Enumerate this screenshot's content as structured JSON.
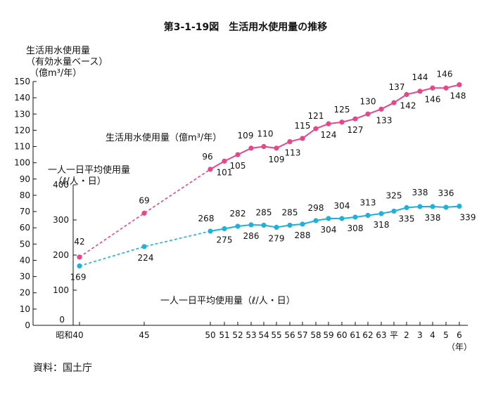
{
  "title": "第3-1-19図　生活用水使用量の推移",
  "source": "資料：国土庁",
  "left_axis_label": [
    "生活用水使用量",
    "（有効水量ベース）",
    "（億m³/年）"
  ],
  "right_axis_label": [
    "一人一日平均使用量",
    "（ℓ/人・日）"
  ],
  "x_unit": "（年）",
  "chart_data": {
    "type": "line",
    "title": "第3-1-19図　生活用水使用量の推移",
    "x_ticks": [
      "昭和40",
      "45",
      "50",
      "51",
      "52",
      "53",
      "54",
      "55",
      "56",
      "57",
      "58",
      "59",
      "60",
      "61",
      "62",
      "63",
      "平",
      "2",
      "3",
      "4",
      "5",
      "6"
    ],
    "series": [
      {
        "name": "生活用水使用量（億m³/年）",
        "axis": "left",
        "color": "#e6468a",
        "x": [
          "昭和40",
          "45",
          "50",
          "51",
          "52",
          "53",
          "54",
          "55",
          "56",
          "57",
          "58",
          "59",
          "60",
          "61",
          "62",
          "63",
          "平",
          "2",
          "3",
          "4",
          "5",
          "6"
        ],
        "values": [
          42,
          69,
          96,
          101,
          105,
          109,
          110,
          109,
          113,
          115,
          121,
          124,
          125,
          127,
          130,
          133,
          137,
          142,
          144,
          146,
          146,
          148
        ],
        "labels": [
          "42",
          "69",
          "96",
          "101",
          "105",
          "109",
          "110",
          "109",
          "113",
          "115",
          "121",
          "124",
          "125",
          "127",
          "130",
          "133",
          "137",
          "142",
          "144",
          "146",
          "146",
          "148"
        ],
        "dashed_until_index": 2
      },
      {
        "name": "一人一日平均使用量（ℓ/人・日）",
        "axis": "right",
        "color": "#1fb0dd",
        "x": [
          "昭和40",
          "45",
          "50",
          "51",
          "52",
          "53",
          "54",
          "55",
          "56",
          "57",
          "58",
          "59",
          "60",
          "61",
          "62",
          "63",
          "平",
          "2",
          "3",
          "4",
          "5",
          "6"
        ],
        "values": [
          169,
          224,
          268,
          275,
          282,
          286,
          285,
          279,
          285,
          288,
          298,
          304,
          304,
          308,
          313,
          318,
          325,
          335,
          338,
          338,
          336,
          339
        ],
        "labels": [
          "169",
          "224",
          "268",
          "275",
          "282",
          "286",
          "285",
          "279",
          "285",
          "288",
          "298",
          "304",
          "304",
          "308",
          "313",
          "318",
          "325",
          "335",
          "338",
          "338",
          "336",
          "339"
        ],
        "dashed_until_index": 2
      }
    ],
    "left_axis": {
      "min": 0,
      "max": 150,
      "step": 10
    },
    "right_axis": {
      "min": 0,
      "max": 400,
      "step": 100
    }
  }
}
